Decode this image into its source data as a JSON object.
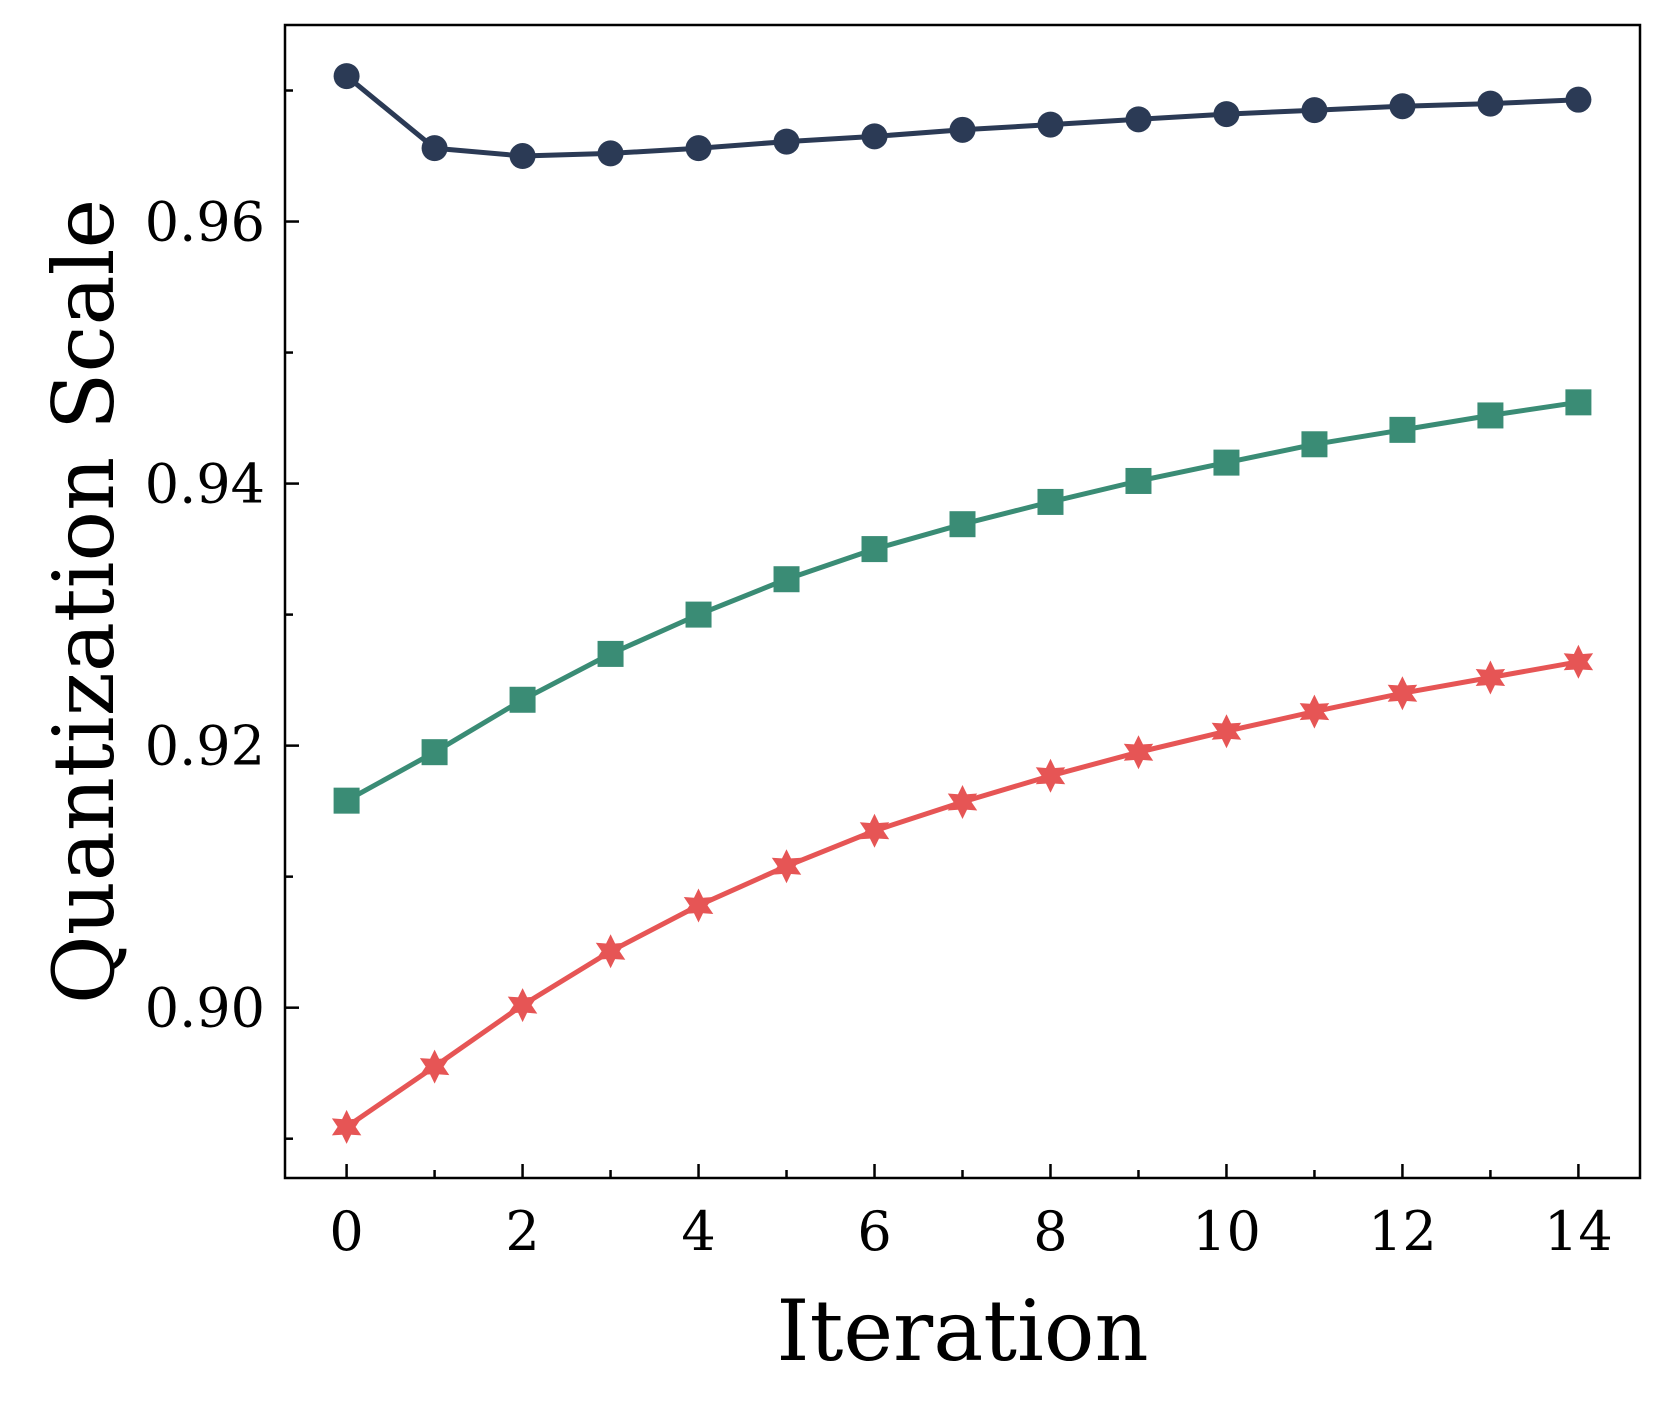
{
  "chart_data": {
    "type": "line",
    "xlabel": "Iteration",
    "ylabel": "Quantization Scale",
    "xlim": [
      -0.7,
      14.7
    ],
    "ylim": [
      0.887,
      0.975
    ],
    "x_ticks": [
      0,
      2,
      4,
      6,
      8,
      10,
      12,
      14
    ],
    "x_tick_labels": [
      "0",
      "2",
      "4",
      "6",
      "8",
      "10",
      "12",
      "14"
    ],
    "x_minor_ticks": [
      1,
      3,
      5,
      7,
      9,
      11,
      13
    ],
    "y_ticks": [
      0.9,
      0.92,
      0.94,
      0.96
    ],
    "y_tick_labels": [
      "0.90",
      "0.92",
      "0.94",
      "0.96"
    ],
    "y_minor_ticks": [
      0.89,
      0.91,
      0.93,
      0.95,
      0.97
    ],
    "grid": false,
    "legend": "none",
    "x": [
      0,
      1,
      2,
      3,
      4,
      5,
      6,
      7,
      8,
      9,
      10,
      11,
      12,
      13,
      14
    ],
    "series": [
      {
        "color": "#2b3a55",
        "marker": "circle",
        "values": [
          0.9711,
          0.9656,
          0.965,
          0.9652,
          0.9656,
          0.9661,
          0.9665,
          0.967,
          0.9674,
          0.9678,
          0.9682,
          0.9685,
          0.9688,
          0.969,
          0.9693
        ]
      },
      {
        "color": "#3a8c75",
        "marker": "square",
        "values": [
          0.9158,
          0.9195,
          0.9235,
          0.927,
          0.93,
          0.9327,
          0.935,
          0.9369,
          0.9386,
          0.9402,
          0.9416,
          0.943,
          0.9441,
          0.9452,
          0.9462
        ]
      },
      {
        "color": "#e65555",
        "marker": "star",
        "values": [
          0.8909,
          0.8955,
          0.9002,
          0.9043,
          0.9078,
          0.9108,
          0.9135,
          0.9157,
          0.9177,
          0.9195,
          0.9211,
          0.9226,
          0.924,
          0.9252,
          0.9264
        ]
      }
    ]
  }
}
